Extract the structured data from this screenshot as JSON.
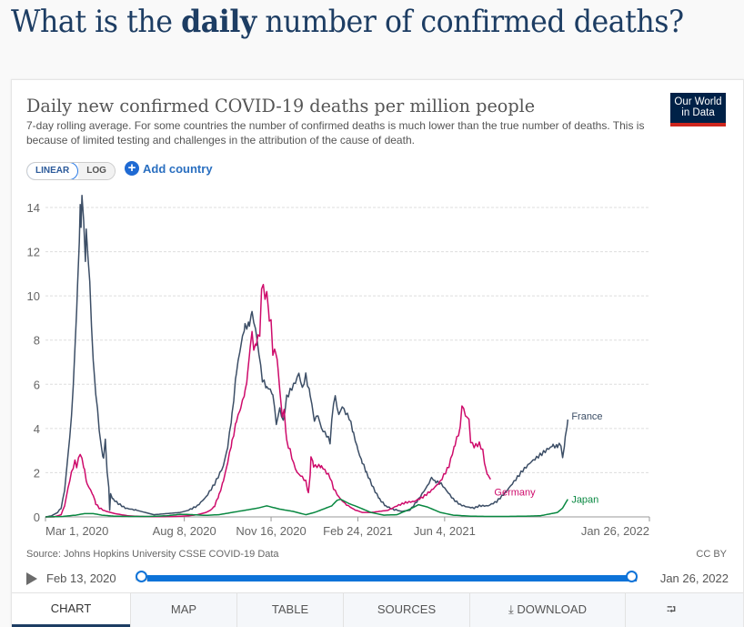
{
  "page": {
    "heading_pre": "What is the ",
    "heading_bold": "daily",
    "heading_post": " number of confirmed deaths?"
  },
  "card": {
    "logo_line1": "Our World",
    "logo_line2": "in Data",
    "scale": {
      "linear": "LINEAR",
      "log": "LOG",
      "selected": "LINEAR"
    },
    "add_country": "Add country",
    "source": "Source: Johns Hopkins University CSSE COVID-19 Data",
    "license": "CC BY",
    "timeline": {
      "start": "Feb 13, 2020",
      "end": "Jan 26, 2022",
      "start_fraction": 0.0,
      "end_fraction": 1.0
    },
    "tabs": [
      {
        "label": "CHART"
      },
      {
        "label": "MAP"
      },
      {
        "label": "TABLE"
      },
      {
        "label": "SOURCES"
      },
      {
        "label": "DOWNLOAD"
      },
      {
        "label": ""
      }
    ],
    "colors": {
      "france": "#3c4e66",
      "germany": "#ce0b6b",
      "japan": "#098841",
      "accent": "#0d73d8",
      "logo_bg": "#002147",
      "logo_bar": "#ce261e"
    }
  },
  "chart_data": {
    "type": "line",
    "title": "Daily new confirmed COVID-19 deaths per million people",
    "subtitle": "7-day rolling average. For some countries the number of confirmed deaths is much lower than the true number of deaths. This is because of limited testing and challenges in the attribution of the cause of death.",
    "xlabel": "",
    "ylabel": "",
    "x_unit": "days since Mar 1, 2020",
    "x_range": [
      0,
      696
    ],
    "ylim": [
      0,
      14
    ],
    "y_ticks": [
      "0",
      "2",
      "4",
      "6",
      "8",
      "10",
      "12",
      "14"
    ],
    "x_ticks": [
      {
        "label": "Mar 1, 2020",
        "day": 0
      },
      {
        "label": "Aug 8, 2020",
        "day": 160
      },
      {
        "label": "Nov 16, 2020",
        "day": 260
      },
      {
        "label": "Feb 24, 2021",
        "day": 360
      },
      {
        "label": "Jun 4, 2021",
        "day": 460
      },
      {
        "label": "Jan 26, 2022",
        "day": 696
      }
    ],
    "grid": true,
    "legend": "right-end labels",
    "series": [
      {
        "name": "France",
        "points": [
          [
            0,
            0
          ],
          [
            7,
            0.05
          ],
          [
            14,
            0.2
          ],
          [
            18,
            0.4
          ],
          [
            22,
            1.2
          ],
          [
            26,
            2.8
          ],
          [
            30,
            4.5
          ],
          [
            34,
            7.5
          ],
          [
            37,
            10.5
          ],
          [
            39,
            12.5
          ],
          [
            40,
            14.3
          ],
          [
            41,
            13.0
          ],
          [
            42,
            14.4
          ],
          [
            44,
            13.5
          ],
          [
            46,
            11.5
          ],
          [
            47,
            13.2
          ],
          [
            49,
            11.6
          ],
          [
            51,
            10.8
          ],
          [
            53,
            8.5
          ],
          [
            56,
            6.5
          ],
          [
            60,
            4.8
          ],
          [
            64,
            3.2
          ],
          [
            67,
            2.6
          ],
          [
            69,
            3.6
          ],
          [
            71,
            2.0
          ],
          [
            73,
            1.4
          ],
          [
            74,
            0.3
          ],
          [
            75,
            1.0
          ],
          [
            78,
            0.8
          ],
          [
            84,
            0.6
          ],
          [
            92,
            0.4
          ],
          [
            105,
            0.3
          ],
          [
            115,
            0.2
          ],
          [
            125,
            0.1
          ],
          [
            140,
            0.15
          ],
          [
            155,
            0.2
          ],
          [
            165,
            0.3
          ],
          [
            175,
            0.5
          ],
          [
            185,
            0.9
          ],
          [
            195,
            1.5
          ],
          [
            205,
            2.3
          ],
          [
            210,
            3.2
          ],
          [
            215,
            4.6
          ],
          [
            220,
            6.5
          ],
          [
            225,
            7.8
          ],
          [
            230,
            8.6
          ],
          [
            235,
            8.7
          ],
          [
            238,
            9.2
          ],
          [
            242,
            8.5
          ],
          [
            246,
            7.4
          ],
          [
            250,
            6.2
          ],
          [
            255,
            5.9
          ],
          [
            262,
            5.6
          ],
          [
            266,
            4.2
          ],
          [
            270,
            4.9
          ],
          [
            274,
            4.3
          ],
          [
            278,
            5.4
          ],
          [
            282,
            5.7
          ],
          [
            288,
            6.1
          ],
          [
            292,
            6.5
          ],
          [
            296,
            5.8
          ],
          [
            300,
            6.4
          ],
          [
            305,
            5.5
          ],
          [
            310,
            4.4
          ],
          [
            314,
            4.6
          ],
          [
            318,
            4.0
          ],
          [
            324,
            3.7
          ],
          [
            328,
            3.4
          ],
          [
            332,
            5.2
          ],
          [
            334,
            5.4
          ],
          [
            338,
            4.6
          ],
          [
            342,
            5.0
          ],
          [
            346,
            4.7
          ],
          [
            350,
            4.5
          ],
          [
            355,
            3.8
          ],
          [
            360,
            3.0
          ],
          [
            365,
            2.5
          ],
          [
            370,
            2.0
          ],
          [
            378,
            1.3
          ],
          [
            385,
            0.8
          ],
          [
            392,
            0.5
          ],
          [
            400,
            0.35
          ],
          [
            410,
            0.25
          ],
          [
            420,
            0.3
          ],
          [
            430,
            0.8
          ],
          [
            440,
            1.4
          ],
          [
            445,
            1.75
          ],
          [
            450,
            1.6
          ],
          [
            456,
            1.5
          ],
          [
            462,
            1.2
          ],
          [
            470,
            0.8
          ],
          [
            478,
            0.55
          ],
          [
            486,
            0.45
          ],
          [
            494,
            0.4
          ],
          [
            500,
            0.5
          ],
          [
            510,
            0.5
          ],
          [
            520,
            0.7
          ],
          [
            530,
            1.1
          ],
          [
            540,
            1.6
          ],
          [
            550,
            2.1
          ],
          [
            560,
            2.5
          ],
          [
            570,
            2.8
          ],
          [
            580,
            3.1
          ],
          [
            585,
            3.2
          ],
          [
            590,
            3.2
          ],
          [
            594,
            3.3
          ],
          [
            596,
            2.6
          ],
          [
            599,
            3.6
          ],
          [
            602,
            4.4
          ]
        ]
      },
      {
        "name": "Germany",
        "points": [
          [
            0,
            0
          ],
          [
            10,
            0
          ],
          [
            18,
            0.1
          ],
          [
            22,
            0.5
          ],
          [
            26,
            1.3
          ],
          [
            30,
            2.0
          ],
          [
            34,
            2.5
          ],
          [
            36,
            2.3
          ],
          [
            38,
            2.6
          ],
          [
            40,
            2.9
          ],
          [
            42,
            2.6
          ],
          [
            45,
            2.1
          ],
          [
            48,
            1.5
          ],
          [
            52,
            1.2
          ],
          [
            55,
            1.0
          ],
          [
            58,
            0.6
          ],
          [
            62,
            0.4
          ],
          [
            70,
            0.25
          ],
          [
            80,
            0.15
          ],
          [
            95,
            0.05
          ],
          [
            110,
            0.02
          ],
          [
            130,
            0.01
          ],
          [
            150,
            0.02
          ],
          [
            165,
            0.05
          ],
          [
            175,
            0.1
          ],
          [
            185,
            0.2
          ],
          [
            190,
            0.3
          ],
          [
            195,
            0.5
          ],
          [
            200,
            1.0
          ],
          [
            205,
            1.6
          ],
          [
            210,
            2.5
          ],
          [
            215,
            3.4
          ],
          [
            220,
            4.3
          ],
          [
            225,
            5.0
          ],
          [
            230,
            5.6
          ],
          [
            233,
            6.5
          ],
          [
            236,
            7.8
          ],
          [
            238,
            8.3
          ],
          [
            240,
            7.6
          ],
          [
            243,
            7.9
          ],
          [
            247,
            8.3
          ],
          [
            249,
            10.2
          ],
          [
            251,
            10.6
          ],
          [
            253,
            9.8
          ],
          [
            255,
            10.2
          ],
          [
            258,
            9.0
          ],
          [
            260,
            8.8
          ],
          [
            262,
            7.4
          ],
          [
            265,
            7.6
          ],
          [
            268,
            6.7
          ],
          [
            270,
            5.7
          ],
          [
            273,
            4.6
          ],
          [
            275,
            4.8
          ],
          [
            278,
            3.4
          ],
          [
            282,
            3.0
          ],
          [
            286,
            2.4
          ],
          [
            290,
            2.0
          ],
          [
            296,
            1.8
          ],
          [
            300,
            1.6
          ],
          [
            303,
            1.1
          ],
          [
            305,
            1.9
          ],
          [
            306,
            2.8
          ],
          [
            309,
            2.3
          ],
          [
            313,
            2.3
          ],
          [
            318,
            2.3
          ],
          [
            324,
            2.0
          ],
          [
            328,
            1.8
          ],
          [
            332,
            1.3
          ],
          [
            338,
            0.9
          ],
          [
            345,
            0.6
          ],
          [
            355,
            0.35
          ],
          [
            365,
            0.2
          ],
          [
            375,
            0.2
          ],
          [
            385,
            0.25
          ],
          [
            395,
            0.3
          ],
          [
            405,
            0.5
          ],
          [
            415,
            0.65
          ],
          [
            425,
            0.7
          ],
          [
            435,
            0.9
          ],
          [
            445,
            1.2
          ],
          [
            455,
            1.6
          ],
          [
            465,
            2.3
          ],
          [
            472,
            3.3
          ],
          [
            478,
            4.0
          ],
          [
            480,
            5.1
          ],
          [
            484,
            4.6
          ],
          [
            488,
            4.4
          ],
          [
            490,
            3.4
          ],
          [
            494,
            3.2
          ],
          [
            500,
            3.3
          ],
          [
            504,
            3.0
          ],
          [
            507,
            2.2
          ],
          [
            510,
            1.9
          ],
          [
            513,
            1.7
          ]
        ]
      },
      {
        "name": "Japan",
        "points": [
          [
            0,
            0
          ],
          [
            20,
            0.02
          ],
          [
            35,
            0.08
          ],
          [
            45,
            0.15
          ],
          [
            55,
            0.15
          ],
          [
            65,
            0.08
          ],
          [
            80,
            0.03
          ],
          [
            100,
            0.02
          ],
          [
            120,
            0.02
          ],
          [
            140,
            0.05
          ],
          [
            155,
            0.12
          ],
          [
            170,
            0.1
          ],
          [
            185,
            0.07
          ],
          [
            200,
            0.1
          ],
          [
            215,
            0.2
          ],
          [
            230,
            0.3
          ],
          [
            245,
            0.4
          ],
          [
            255,
            0.5
          ],
          [
            260,
            0.45
          ],
          [
            270,
            0.35
          ],
          [
            285,
            0.25
          ],
          [
            300,
            0.1
          ],
          [
            310,
            0.2
          ],
          [
            320,
            0.35
          ],
          [
            330,
            0.5
          ],
          [
            336,
            0.75
          ],
          [
            340,
            0.8
          ],
          [
            350,
            0.6
          ],
          [
            360,
            0.45
          ],
          [
            375,
            0.2
          ],
          [
            390,
            0.08
          ],
          [
            405,
            0.1
          ],
          [
            420,
            0.35
          ],
          [
            430,
            0.55
          ],
          [
            440,
            0.45
          ],
          [
            455,
            0.2
          ],
          [
            470,
            0.08
          ],
          [
            490,
            0.03
          ],
          [
            510,
            0.02
          ],
          [
            530,
            0.02
          ],
          [
            550,
            0.03
          ],
          [
            570,
            0.05
          ],
          [
            590,
            0.2
          ],
          [
            596,
            0.4
          ],
          [
            602,
            0.8
          ]
        ]
      }
    ]
  }
}
